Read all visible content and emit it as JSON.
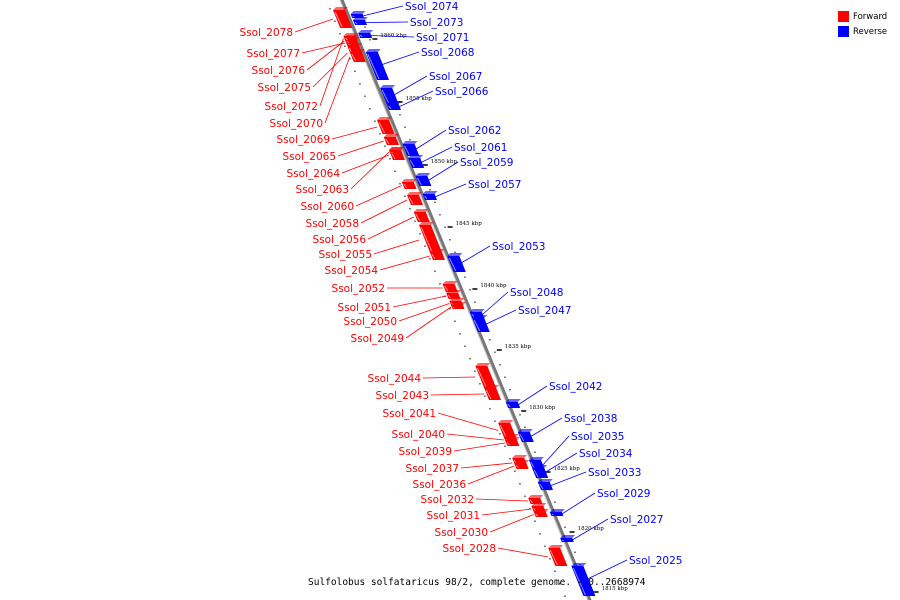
{
  "caption": "Sulfolobus solfataricus 98/2, complete genome. - 0..2668974",
  "legend": [
    {
      "label": "Forward",
      "color": "#ff0000"
    },
    {
      "label": "Reverse",
      "color": "#0000ff"
    }
  ],
  "colors": {
    "forward": "#ff0000",
    "reverse": "#0000ff",
    "backbone": "#888888"
  },
  "scale_marks": [
    "1860 kbp",
    "1855 kbp",
    "1850 kbp",
    "1845 kbp",
    "1840 kbp",
    "1835 kbp",
    "1830 kbp",
    "1825 kbp",
    "1820 kbp",
    "1815 kbp"
  ],
  "genes_forward": [
    "Ssol_2078",
    "Ssol_2077",
    "Ssol_2076",
    "Ssol_2075",
    "Ssol_2072",
    "Ssol_2070",
    "Ssol_2069",
    "Ssol_2065",
    "Ssol_2064",
    "Ssol_2063",
    "Ssol_2060",
    "Ssol_2058",
    "Ssol_2056",
    "Ssol_2055",
    "Ssol_2054",
    "Ssol_2052",
    "Ssol_2051",
    "Ssol_2050",
    "Ssol_2049",
    "Ssol_2044",
    "Ssol_2043",
    "Ssol_2041",
    "Ssol_2040",
    "Ssol_2039",
    "Ssol_2037",
    "Ssol_2036",
    "Ssol_2032",
    "Ssol_2031",
    "Ssol_2030",
    "Ssol_2028"
  ],
  "genes_reverse": [
    "Ssol_2074",
    "Ssol_2073",
    "Ssol_2071",
    "Ssol_2068",
    "Ssol_2067",
    "Ssol_2066",
    "Ssol_2062",
    "Ssol_2061",
    "Ssol_2059",
    "Ssol_2057",
    "Ssol_2053",
    "Ssol_2048",
    "Ssol_2047",
    "Ssol_2042",
    "Ssol_2038",
    "Ssol_2035",
    "Ssol_2034",
    "Ssol_2033",
    "Ssol_2029",
    "Ssol_2027",
    "Ssol_2025"
  ]
}
